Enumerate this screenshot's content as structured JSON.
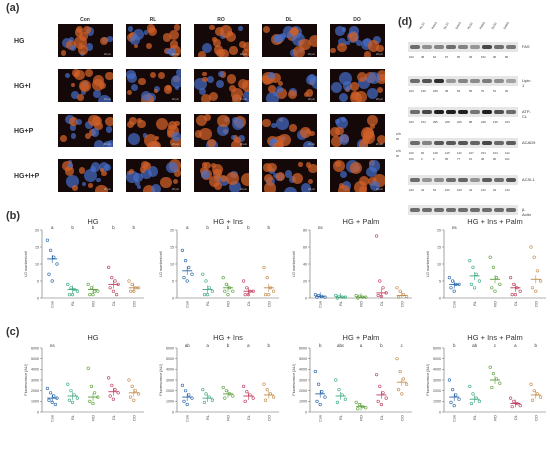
{
  "figure": {
    "panel_a_label": "(a)",
    "panel_b_label": "(b)",
    "panel_c_label": "(c)",
    "panel_d_label": "(d)"
  },
  "micrographs": {
    "columns": [
      "Con",
      "RL",
      "RO",
      "DL",
      "DO"
    ],
    "rows": [
      "HG",
      "HG+I",
      "HG+P",
      "HG+I+P"
    ],
    "scale_bar": "20 µm"
  },
  "western_blot": {
    "lanes": [
      "Con",
      "RL10",
      "RO10",
      "DL10",
      "DO10",
      "RL50",
      "RO50",
      "DL50",
      "DO50"
    ],
    "proteins": [
      {
        "name": "FAS",
        "values": [
          "100",
          "48",
          "62",
          "97",
          "65",
          "39",
          "152",
          "96",
          "80"
        ]
      },
      {
        "name": "Lipin 1",
        "values": [
          "100",
          "136",
          "189",
          "38",
          "63",
          "55",
          "76",
          "51",
          "20"
        ]
      },
      {
        "name": "ATP-CL",
        "values": [
          "100",
          "154",
          "295",
          "228",
          "226",
          "88",
          "248",
          "139",
          "103"
        ]
      },
      {
        "name": "ACAD9",
        "values": [
          "100",
          "66",
          "128",
          "125",
          "132",
          "107",
          "154",
          "104",
          "122"
        ],
        "values2": [
          "100",
          "0",
          "0",
          "55",
          "77",
          "16",
          "48",
          "90",
          "101"
        ],
        "side_labels": [
          "c/n",
          "m",
          "c/n",
          "m"
        ]
      },
      {
        "name": "ACSL1",
        "values": [
          "100",
          "42",
          "54",
          "100",
          "109",
          "42",
          "120",
          "94",
          "133"
        ]
      },
      {
        "name": "β-Actin",
        "values": []
      }
    ]
  },
  "chart_data": [
    {
      "type": "scatter",
      "panel": "b",
      "title": "HG",
      "ylabel": "LD number/cell",
      "categories": [
        "Con",
        "RL",
        "RO",
        "DL",
        "DO"
      ],
      "ylim": [
        0,
        20
      ],
      "yticks": [
        "0",
        "5",
        "10",
        "15",
        "20"
      ],
      "letters": [
        "a",
        "b",
        "b",
        "b",
        "b"
      ],
      "means": [
        11.5,
        2.5,
        2.5,
        4,
        3
      ],
      "points": [
        [
          17,
          14,
          12,
          10,
          7,
          5
        ],
        [
          4,
          3,
          2.5,
          2,
          1,
          1
        ],
        [
          4,
          3,
          2,
          2,
          1,
          1
        ],
        [
          9,
          6,
          5,
          4,
          3,
          2,
          1
        ],
        [
          5,
          4,
          3,
          3,
          2,
          2
        ]
      ],
      "colors": [
        "#2563a8",
        "#3aa87c",
        "#5a9f3c",
        "#c0395a",
        "#c08a4a"
      ]
    },
    {
      "type": "scatter",
      "panel": "b",
      "title": "HG + Ins",
      "ylabel": "LD number/cell",
      "categories": [
        "Con",
        "RL",
        "RO",
        "DL",
        "DO"
      ],
      "ylim": [
        0,
        20
      ],
      "yticks": [
        "0",
        "5",
        "10",
        "15",
        "20"
      ],
      "letters": [
        "a",
        "b",
        "b",
        "b",
        "b"
      ],
      "means": [
        8,
        2.5,
        3,
        2,
        3
      ],
      "points": [
        [
          14,
          11,
          9,
          7,
          6,
          5
        ],
        [
          7,
          5,
          3,
          2,
          1,
          1
        ],
        [
          6,
          4,
          3,
          2,
          2,
          1
        ],
        [
          5,
          3,
          2,
          2,
          1,
          1
        ],
        [
          9,
          6,
          3,
          2,
          1,
          1
        ]
      ],
      "colors": [
        "#2563a8",
        "#3aa87c",
        "#5a9f3c",
        "#c0395a",
        "#c08a4a"
      ]
    },
    {
      "type": "scatter",
      "panel": "b",
      "title": "HG + Palm",
      "ylabel": "LD number/cell",
      "categories": [
        "Con",
        "RL",
        "RO",
        "DL",
        "DO"
      ],
      "ylim": [
        0,
        80
      ],
      "yticks": [
        "0",
        "20",
        "40",
        "60",
        "80"
      ],
      "letters": [
        "ns",
        "",
        "",
        "",
        ""
      ],
      "means": [
        2,
        1,
        1,
        6,
        3
      ],
      "points": [
        [
          4,
          3,
          2,
          1,
          1
        ],
        [
          3,
          2,
          1,
          1,
          0
        ],
        [
          3,
          2,
          1,
          1,
          0
        ],
        [
          73,
          20,
          12,
          6,
          3,
          2
        ],
        [
          12,
          8,
          4,
          2,
          1
        ]
      ],
      "colors": [
        "#2563a8",
        "#3aa87c",
        "#5a9f3c",
        "#c0395a",
        "#c08a4a"
      ]
    },
    {
      "type": "scatter",
      "panel": "b",
      "title": "HG + Ins + Palm",
      "ylabel": "LD number/cell",
      "categories": [
        "Con",
        "RL",
        "RO",
        "DL",
        "DO"
      ],
      "ylim": [
        0,
        20
      ],
      "yticks": [
        "0",
        "5",
        "10",
        "15",
        "20"
      ],
      "letters": [
        "ns",
        "",
        "",
        "",
        ""
      ],
      "means": [
        4,
        6.5,
        5.5,
        3,
        5.5
      ],
      "points": [
        [
          6,
          5,
          4,
          4,
          3,
          2
        ],
        [
          11,
          9,
          7,
          5,
          4,
          3
        ],
        [
          12,
          9,
          6,
          4,
          3,
          2
        ],
        [
          6,
          4,
          3,
          2,
          1,
          1
        ],
        [
          15,
          12,
          8,
          5,
          3,
          2
        ]
      ],
      "colors": [
        "#2563a8",
        "#3aa87c",
        "#5a9f3c",
        "#c0395a",
        "#c08a4a"
      ]
    },
    {
      "type": "scatter",
      "panel": "c",
      "title": "HG",
      "ylabel": "Fluorescence [AU]",
      "categories": [
        "Con",
        "RL",
        "RO",
        "DL",
        "DO"
      ],
      "ylim": [
        0,
        6000
      ],
      "yticks": [
        "0",
        "1000",
        "2000",
        "3000",
        "4000",
        "5000",
        "6000"
      ],
      "letters": [
        "ns",
        "",
        "",
        "",
        ""
      ],
      "means": [
        1300,
        1500,
        1400,
        1900,
        1800
      ],
      "points": [
        [
          2200,
          1800,
          1500,
          1300,
          1100,
          900,
          700
        ],
        [
          2600,
          2000,
          1600,
          1300,
          1100,
          900
        ],
        [
          4100,
          2400,
          1800,
          1400,
          1000,
          800
        ],
        [
          3200,
          2500,
          2100,
          1800,
          1500,
          1200
        ],
        [
          3000,
          2400,
          2000,
          1700,
          1400,
          1100
        ]
      ],
      "colors": [
        "#2563a8",
        "#3aa87c",
        "#5a9f3c",
        "#c0395a",
        "#c08a4a"
      ]
    },
    {
      "type": "scatter",
      "panel": "c",
      "title": "HG + Ins",
      "ylabel": "Fluorescence [AU]",
      "categories": [
        "Con",
        "RL",
        "RO",
        "DL",
        "DO"
      ],
      "ylim": [
        0,
        6000
      ],
      "yticks": [
        "0",
        "1000",
        "2000",
        "3000",
        "4000",
        "5000",
        "6000"
      ],
      "letters": [
        "ab",
        "a",
        "b",
        "a",
        "b"
      ],
      "means": [
        1400,
        1300,
        1700,
        1500,
        1600
      ],
      "points": [
        [
          2500,
          2000,
          1600,
          1300,
          1000,
          700
        ],
        [
          2100,
          1700,
          1400,
          1100,
          900
        ],
        [
          2300,
          2000,
          1700,
          1500,
          1300
        ],
        [
          2400,
          1900,
          1600,
          1300,
          1000
        ],
        [
          2600,
          2100,
          1700,
          1400,
          1100
        ]
      ],
      "colors": [
        "#2563a8",
        "#3aa87c",
        "#5a9f3c",
        "#c0395a",
        "#c08a4a"
      ]
    },
    {
      "type": "scatter",
      "panel": "c",
      "title": "HG + Palm",
      "ylabel": "Fluorescence [AU]",
      "categories": [
        "Con",
        "RL",
        "RO",
        "DL",
        "DO"
      ],
      "ylim": [
        0,
        6000
      ],
      "yticks": [
        "0",
        "1000",
        "2000",
        "3000",
        "4000",
        "5000",
        "6000"
      ],
      "letters": [
        "b",
        "abc",
        "a",
        "b",
        "c"
      ],
      "means": [
        1700,
        1500,
        500,
        1600,
        2800
      ],
      "points": [
        [
          3800,
          2600,
          1900,
          1400,
          1000,
          700
        ],
        [
          3000,
          2100,
          1600,
          1200,
          900
        ],
        [
          900,
          700,
          500,
          400,
          300
        ],
        [
          3500,
          2400,
          1800,
          1300,
          1000,
          700
        ],
        [
          5000,
          3800,
          3100,
          2600,
          2100,
          1700
        ]
      ],
      "colors": [
        "#2563a8",
        "#3aa87c",
        "#5a9f3c",
        "#c0395a",
        "#c08a4a"
      ]
    },
    {
      "type": "scatter",
      "panel": "c",
      "title": "HG + Ins + Palm",
      "ylabel": "Fluorescence [AU]",
      "categories": [
        "Con",
        "RL",
        "RO",
        "DL",
        "DO"
      ],
      "ylim": [
        0,
        6000
      ],
      "yticks": [
        "0",
        "1000",
        "2000",
        "3000",
        "4000",
        "5000",
        "6000"
      ],
      "letters": [
        "b",
        "ab",
        "c",
        "a",
        "b"
      ],
      "means": [
        1400,
        1200,
        3000,
        800,
        1600
      ],
      "points": [
        [
          3000,
          2100,
          1600,
          1200,
          900,
          600
        ],
        [
          2400,
          1700,
          1300,
          1000,
          800
        ],
        [
          4200,
          3600,
          3100,
          2700,
          2300
        ],
        [
          1300,
          1000,
          800,
          600,
          500
        ],
        [
          2600,
          2000,
          1700,
          1400,
          1100
        ]
      ],
      "colors": [
        "#2563a8",
        "#3aa87c",
        "#5a9f3c",
        "#c0395a",
        "#c08a4a"
      ]
    }
  ]
}
